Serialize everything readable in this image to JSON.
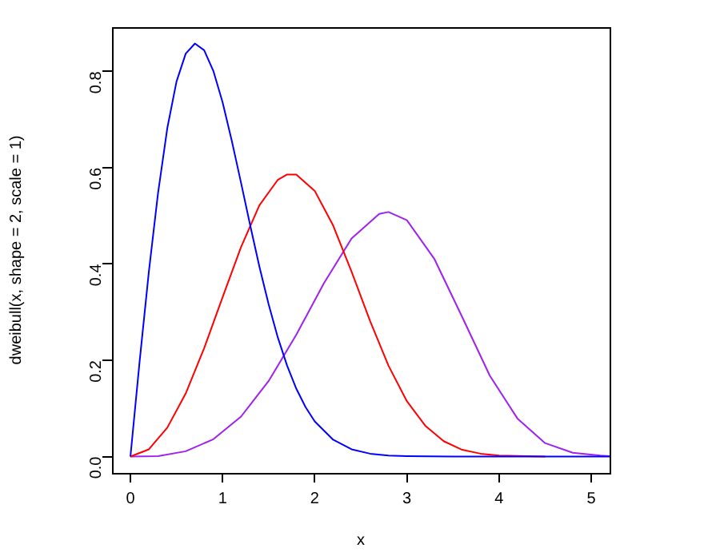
{
  "chart_data": {
    "type": "line",
    "xlabel": "x",
    "ylabel": "dweibull(x, shape = 2, scale = 1)",
    "xlim": [
      -0.2,
      5.2
    ],
    "ylim": [
      -0.034,
      0.892
    ],
    "xticks": [
      0,
      1,
      2,
      3,
      4,
      5
    ],
    "yticks": [
      {
        "value": 0,
        "label": "0.0"
      },
      {
        "value": 0.2,
        "label": "0.2"
      },
      {
        "value": 0.4,
        "label": "0.4"
      },
      {
        "value": 0.6,
        "label": "0.6"
      },
      {
        "value": 0.8,
        "label": "0.8"
      }
    ],
    "grid": false,
    "legend": false,
    "marker": "none",
    "line_style": "solid",
    "series": [
      {
        "color": "#0000ff",
        "x": [
          0,
          0.1,
          0.2,
          0.3,
          0.4,
          0.5,
          0.6,
          0.7,
          0.8,
          0.9,
          1.0,
          1.1,
          1.2,
          1.3,
          1.4,
          1.5,
          1.6,
          1.7,
          1.8,
          1.9,
          2.0,
          2.2,
          2.4,
          2.6,
          2.8,
          3.0,
          3.5,
          4.0,
          5.0,
          5.2
        ],
        "values": [
          0,
          0.198,
          0.384,
          0.548,
          0.682,
          0.779,
          0.837,
          0.858,
          0.844,
          0.801,
          0.736,
          0.656,
          0.569,
          0.48,
          0.394,
          0.316,
          0.247,
          0.189,
          0.141,
          0.103,
          0.073,
          0.035,
          0.015,
          0.006,
          0.002,
          0.001,
          0,
          0,
          0,
          0
        ]
      },
      {
        "color": "#ff0000",
        "x": [
          0,
          0.2,
          0.4,
          0.6,
          0.8,
          1.0,
          1.2,
          1.4,
          1.6,
          1.7,
          1.8,
          2.0,
          2.2,
          2.4,
          2.6,
          2.8,
          3.0,
          3.2,
          3.4,
          3.6,
          3.8,
          4.0,
          4.5
        ],
        "values": [
          0,
          0.015,
          0.06,
          0.131,
          0.225,
          0.331,
          0.435,
          0.522,
          0.575,
          0.586,
          0.586,
          0.552,
          0.48,
          0.384,
          0.282,
          0.189,
          0.115,
          0.064,
          0.032,
          0.014,
          0.006,
          0.002,
          0
        ]
      },
      {
        "color": "#a020f0",
        "x": [
          0,
          0.3,
          0.6,
          0.9,
          1.2,
          1.5,
          1.8,
          2.1,
          2.4,
          2.7,
          2.8,
          3.0,
          3.3,
          3.6,
          3.9,
          4.2,
          4.5,
          4.8,
          5.1,
          5.2
        ],
        "values": [
          0,
          0.001,
          0.011,
          0.036,
          0.083,
          0.157,
          0.253,
          0.36,
          0.453,
          0.504,
          0.508,
          0.491,
          0.41,
          0.29,
          0.168,
          0.079,
          0.028,
          0.008,
          0.002,
          0.001
        ]
      }
    ]
  }
}
